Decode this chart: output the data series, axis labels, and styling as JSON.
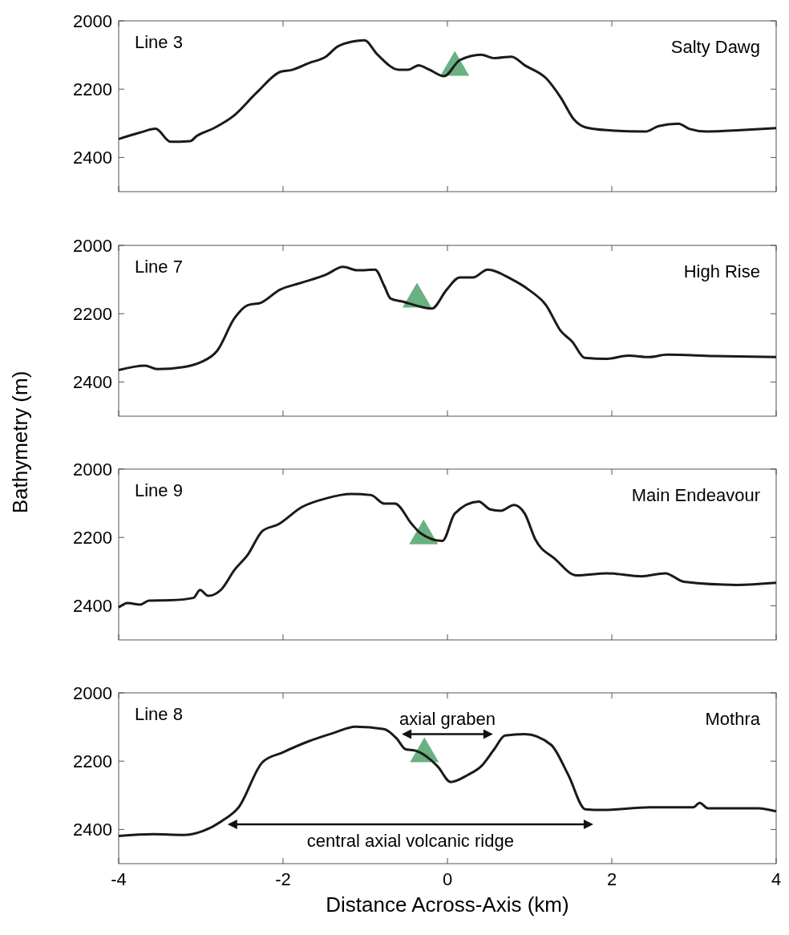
{
  "chart_data": [
    {
      "type": "line",
      "title": "Line 3",
      "annotations": [
        "Salty Dawg"
      ],
      "xlim": [
        -4,
        4
      ],
      "xticks": [
        -4,
        -2,
        0,
        2,
        4
      ],
      "ylim": [
        2500,
        2000
      ],
      "yticks": [
        2000,
        2200,
        2400
      ],
      "tick_labels": "y",
      "series": [
        {
          "color": "#1a1a1a",
          "marker": "none",
          "x": [
            -4,
            -3.74,
            -3.55,
            -3.37,
            -3.13,
            -3.05,
            -2.84,
            -2.6,
            -2.32,
            -2.03,
            -1.9,
            -1.69,
            -1.48,
            -1.32,
            -1.01,
            -0.85,
            -0.59,
            -0.48,
            -0.35,
            -0.22,
            -0.04,
            0.15,
            0.41,
            0.57,
            0.78,
            0.94,
            1.2,
            1.38,
            1.54,
            1.67,
            1.94,
            2.41,
            2.57,
            2.81,
            2.94,
            3.15,
            3.57,
            4
          ],
          "values": [
            2346,
            2327,
            2316,
            2354,
            2352,
            2337,
            2314,
            2278,
            2210,
            2149,
            2144,
            2124,
            2105,
            2073,
            2057,
            2099,
            2143,
            2143,
            2130,
            2143,
            2162,
            2115,
            2099,
            2109,
            2105,
            2130,
            2168,
            2225,
            2289,
            2311,
            2320,
            2324,
            2308,
            2301,
            2316,
            2324,
            2320,
            2314
          ]
        },
        {
          "type": "scatter",
          "color": "#4fa36a",
          "marker": "triangle",
          "x": [
            0.09
          ],
          "values": [
            2135
          ]
        }
      ]
    },
    {
      "type": "line",
      "title": "Line 7",
      "annotations": [
        "High Rise"
      ],
      "ylabel": "Bathymetry (m)",
      "xlim": [
        -4,
        4
      ],
      "xticks": [
        -4,
        -2,
        0,
        2,
        4
      ],
      "ylim": [
        2500,
        2000
      ],
      "yticks": [
        2000,
        2200,
        2400
      ],
      "tick_labels": "y",
      "series": [
        {
          "color": "#1a1a1a",
          "marker": "none",
          "x": [
            -4,
            -3.68,
            -3.53,
            -3.21,
            -3.0,
            -2.8,
            -2.59,
            -2.43,
            -2.27,
            -2.04,
            -1.8,
            -1.48,
            -1.27,
            -1.09,
            -0.88,
            -0.77,
            -0.69,
            -0.54,
            -0.19,
            -0.01,
            0.15,
            0.31,
            0.49,
            0.78,
            0.99,
            1.2,
            1.38,
            1.52,
            1.67,
            1.94,
            2.2,
            2.46,
            2.67,
            3.25,
            4
          ],
          "values": [
            2365,
            2352,
            2362,
            2356,
            2342,
            2308,
            2213,
            2175,
            2168,
            2130,
            2111,
            2086,
            2063,
            2073,
            2071,
            2118,
            2156,
            2165,
            2185,
            2130,
            2094,
            2094,
            2071,
            2099,
            2130,
            2175,
            2251,
            2282,
            2329,
            2332,
            2323,
            2327,
            2320,
            2324,
            2327
          ]
        },
        {
          "type": "scatter",
          "color": "#4fa36a",
          "marker": "triangle",
          "x": [
            -0.37
          ],
          "values": [
            2156
          ]
        }
      ]
    },
    {
      "type": "line",
      "title": "Line 9",
      "annotations": [
        "Main Endeavour"
      ],
      "xlim": [
        -4,
        4
      ],
      "xticks": [
        -4,
        -2,
        0,
        2,
        4
      ],
      "ylim": [
        2500,
        2000
      ],
      "yticks": [
        2000,
        2200,
        2400
      ],
      "tick_labels": "y",
      "series": [
        {
          "color": "#1a1a1a",
          "marker": "none",
          "x": [
            -4,
            -3.89,
            -3.74,
            -3.63,
            -3.37,
            -3.09,
            -3.01,
            -2.91,
            -2.75,
            -2.59,
            -2.43,
            -2.25,
            -2.06,
            -1.77,
            -1.48,
            -1.17,
            -0.93,
            -0.77,
            -0.64,
            -0.43,
            -0.33,
            -0.06,
            0.09,
            0.38,
            0.52,
            0.65,
            0.81,
            0.94,
            1.07,
            1.31,
            1.57,
            1.94,
            2.36,
            2.65,
            2.88,
            3.52,
            4
          ],
          "values": [
            2405,
            2392,
            2397,
            2385,
            2384,
            2377,
            2354,
            2371,
            2352,
            2295,
            2251,
            2181,
            2162,
            2111,
            2086,
            2073,
            2076,
            2101,
            2101,
            2162,
            2187,
            2210,
            2130,
            2095,
            2118,
            2122,
            2105,
            2130,
            2206,
            2263,
            2311,
            2305,
            2314,
            2305,
            2330,
            2339,
            2333
          ]
        },
        {
          "type": "scatter",
          "color": "#4fa36a",
          "marker": "triangle",
          "x": [
            -0.29
          ],
          "values": [
            2194
          ]
        }
      ]
    },
    {
      "type": "line",
      "title": "Line 8",
      "annotations": [
        "Mothra",
        "axial graben",
        "central axial volcanic ridge"
      ],
      "xlabel": "Distance Across-Axis (km)",
      "xlim": [
        -4,
        4
      ],
      "xticks": [
        -4,
        -2,
        0,
        2,
        4
      ],
      "ylim": [
        2500,
        2000
      ],
      "yticks": [
        2000,
        2200,
        2400
      ],
      "series": [
        {
          "color": "#1a1a1a",
          "marker": "none",
          "x": [
            -4,
            -3.58,
            -3.21,
            -2.97,
            -2.75,
            -2.54,
            -2.25,
            -2.01,
            -1.69,
            -1.38,
            -1.12,
            -0.77,
            -0.62,
            -0.51,
            -0.38,
            -0.12,
            0.04,
            0.25,
            0.41,
            0.57,
            0.7,
            0.94,
            1.26,
            1.47,
            1.68,
            1.88,
            2.46,
            2.99,
            3.07,
            3.17,
            3.78,
            4
          ],
          "values": [
            2419,
            2414,
            2416,
            2404,
            2376,
            2335,
            2203,
            2175,
            2142,
            2117,
            2099,
            2106,
            2133,
            2165,
            2170,
            2215,
            2261,
            2240,
            2215,
            2165,
            2125,
            2121,
            2152,
            2240,
            2341,
            2343,
            2335,
            2335,
            2322,
            2338,
            2338,
            2347
          ]
        },
        {
          "type": "scatter",
          "color": "#4fa36a",
          "marker": "triangle",
          "x": [
            -0.28
          ],
          "values": [
            2177
          ]
        }
      ]
    }
  ]
}
